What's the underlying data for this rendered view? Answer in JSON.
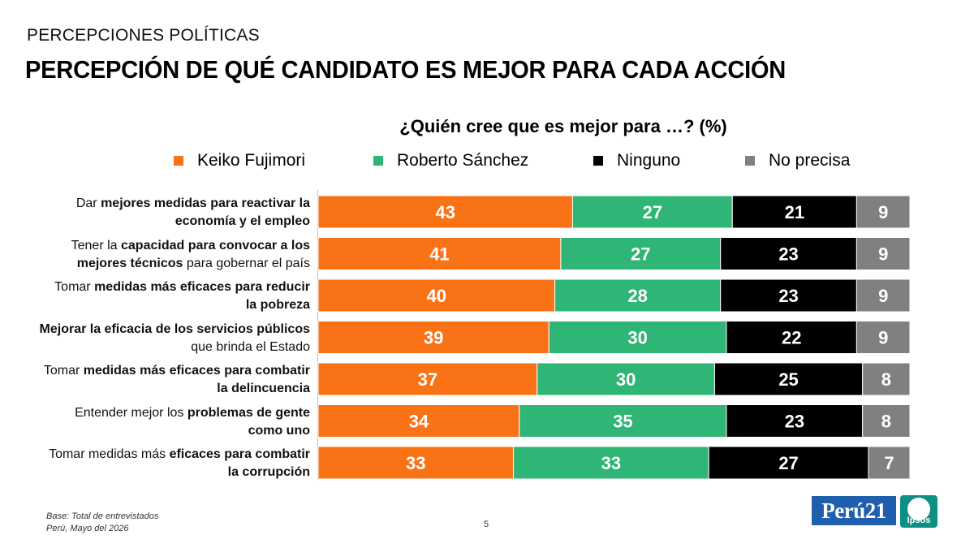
{
  "header": {
    "kicker": "PERCEPCIONES POLÍTICAS",
    "title": "PERCEPCIÓN DE QUÉ CANDIDATO ES MEJOR PARA CADA ACCIÓN"
  },
  "chart_data": {
    "type": "bar",
    "orientation": "horizontal",
    "stacked": true,
    "title": "¿Quién cree que es mejor para …? (%)",
    "legend_position": "top",
    "grid": false,
    "xlim": [
      0,
      100
    ],
    "categories": [
      "Dar mejores medidas para reactivar la economía y el empleo",
      "Tener la capacidad para convocar a los mejores técnicos para gobernar el país",
      "Tomar medidas más eficaces para reducir la pobreza",
      "Mejorar la eficacia de los servicios públicos que brinda el Estado",
      "Tomar medidas más eficaces para combatir la delincuencia",
      "Entender mejor los problemas de gente como uno",
      "Tomar medidas más eficaces para combatir la corrupción"
    ],
    "series": [
      {
        "name": "Keiko Fujimori",
        "color": "#f97316",
        "values": [
          43,
          41,
          40,
          39,
          37,
          34,
          33
        ]
      },
      {
        "name": "Roberto Sánchez",
        "color": "#2fb575",
        "values": [
          27,
          27,
          28,
          30,
          30,
          35,
          33
        ]
      },
      {
        "name": "Ninguno",
        "color": "#000000",
        "values": [
          21,
          23,
          23,
          22,
          25,
          23,
          27
        ]
      },
      {
        "name": "No precisa",
        "color": "#808080",
        "values": [
          9,
          9,
          9,
          9,
          8,
          8,
          7
        ]
      }
    ]
  },
  "row_labels": [
    [
      {
        "t": "Dar ",
        "b": false
      },
      {
        "t": "mejores medidas para reactivar la",
        "b": true
      },
      {
        "br": true
      },
      {
        "t": "economía y el empleo",
        "b": true
      }
    ],
    [
      {
        "t": "Tener la ",
        "b": false
      },
      {
        "t": "capacidad para convocar a los",
        "b": true
      },
      {
        "br": true
      },
      {
        "t": "mejores técnicos",
        "b": true
      },
      {
        "t": " para gobernar el país",
        "b": false
      }
    ],
    [
      {
        "t": "Tomar ",
        "b": false
      },
      {
        "t": "medidas más eficaces para reducir",
        "b": true
      },
      {
        "br": true
      },
      {
        "t": "la pobreza",
        "b": true
      }
    ],
    [
      {
        "t": "Mejorar la eficacia de los servicios públicos",
        "b": true
      },
      {
        "br": true
      },
      {
        "t": "que brinda el Estado",
        "b": false
      }
    ],
    [
      {
        "t": "Tomar ",
        "b": false
      },
      {
        "t": "medidas más eficaces para combatir",
        "b": true
      },
      {
        "br": true
      },
      {
        "t": "la delincuencia",
        "b": true
      }
    ],
    [
      {
        "t": "Entender mejor los ",
        "b": false
      },
      {
        "t": "problemas de gente",
        "b": true
      },
      {
        "br": true
      },
      {
        "t": "como uno",
        "b": true
      }
    ],
    [
      {
        "t": "Tomar medidas más ",
        "b": false
      },
      {
        "t": "eficaces para combatir",
        "b": true
      },
      {
        "br": true
      },
      {
        "t": "la corrupción",
        "b": true
      }
    ]
  ],
  "footer": {
    "base": "Base: Total de entrevistados",
    "place_date": "Perú, Mayo del 2026",
    "page_number": "5"
  },
  "logos": {
    "peru21": "Perú21",
    "ipsos": "Ipsos"
  }
}
